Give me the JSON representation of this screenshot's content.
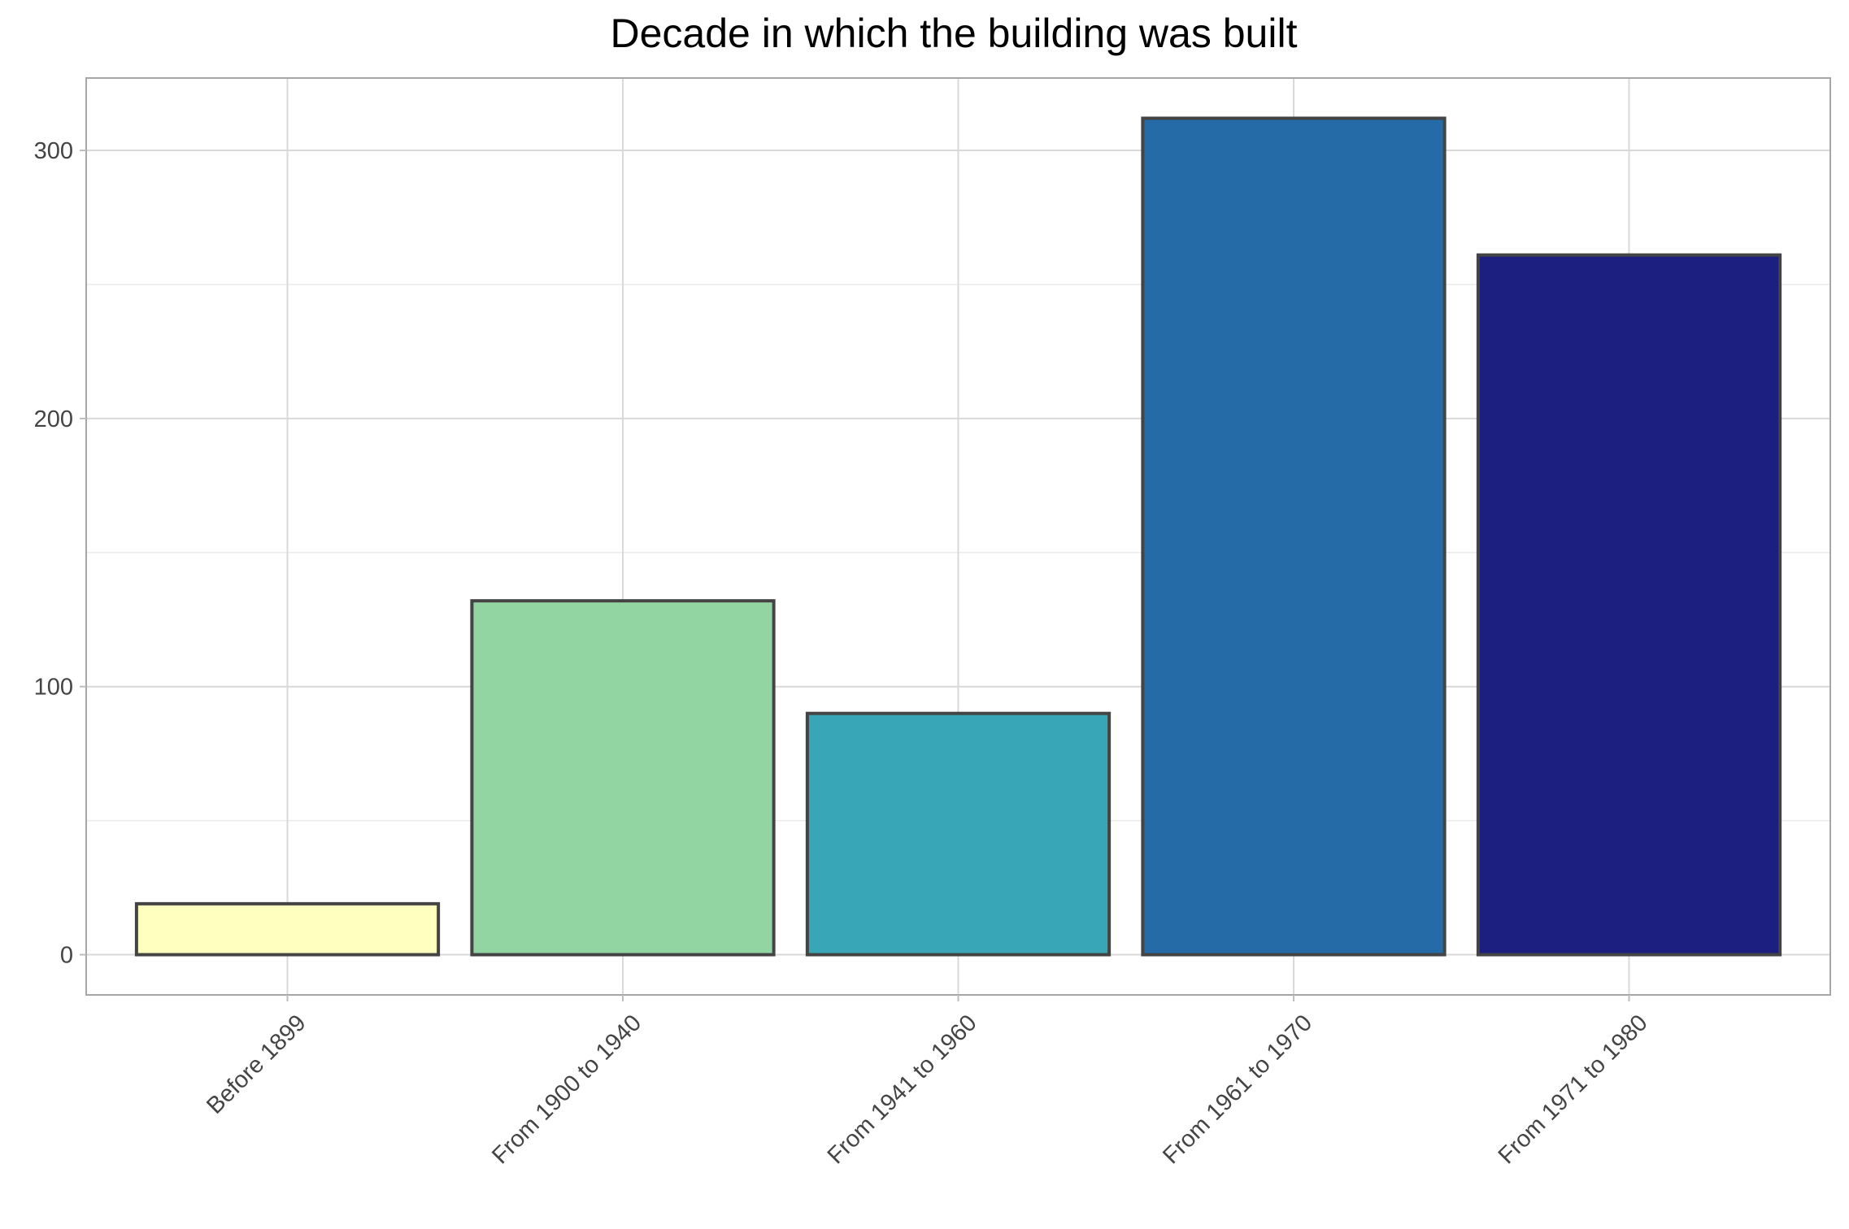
{
  "chart_data": {
    "type": "bar",
    "title": "Decade in which the building was built",
    "xlabel": "",
    "ylabel": "",
    "categories": [
      "Before 1899",
      "From 1900 to 1940",
      "From 1941 to 1960",
      "From 1961 to 1970",
      "From 1971 to 1980"
    ],
    "values": [
      19,
      132,
      90,
      312,
      261
    ],
    "colors": [
      "#ffffc0",
      "#93d4a3",
      "#38a6b7",
      "#246ba8",
      "#1c1f7f"
    ],
    "yticks": [
      0,
      100,
      200,
      300
    ],
    "ylim": [
      -15,
      327
    ],
    "grid": true,
    "legend": "none"
  }
}
